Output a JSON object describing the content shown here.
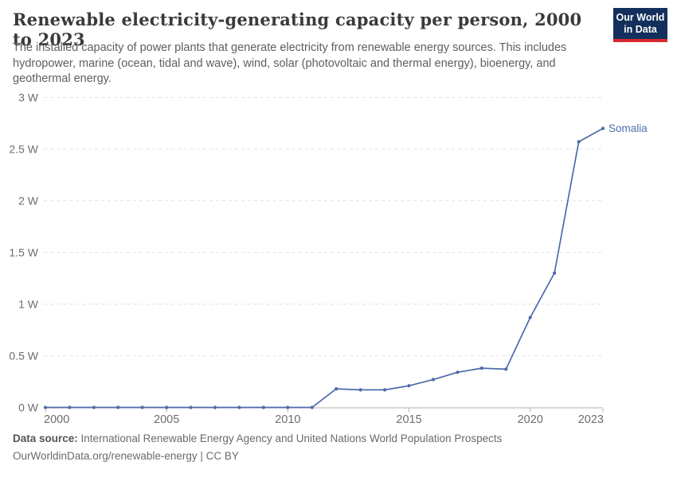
{
  "header": {
    "title": "Renewable electricity-generating capacity per person, 2000 to 2023",
    "subtitle_lines": [
      "The installed capacity of power plants that generate electricity from renewable energy sources. This includes",
      "hydropower, marine (ocean, tidal and wave), wind, solar (photovoltaic and thermal energy), bioenergy, and",
      "geothermal energy."
    ],
    "logo": {
      "line1": "Our World",
      "line2": "in Data",
      "bg_color": "#13305c",
      "stripe_color": "#d7282f"
    }
  },
  "chart_data": {
    "type": "line",
    "title": "Renewable electricity-generating capacity per person, 2000 to 2023",
    "unit": "W",
    "ylabel": "",
    "xlabel": "",
    "ylim": [
      0,
      3
    ],
    "grid": "horizontal-dashed",
    "legend_position": "end-of-line-label",
    "x": [
      2000,
      2001,
      2002,
      2003,
      2004,
      2005,
      2006,
      2007,
      2008,
      2009,
      2010,
      2011,
      2012,
      2013,
      2014,
      2015,
      2016,
      2017,
      2018,
      2019,
      2020,
      2021,
      2022,
      2023
    ],
    "series": [
      {
        "name": "Somalia",
        "color": "#4c6ba9",
        "values": [
          0,
          0,
          0,
          0,
          0,
          0,
          0,
          0,
          0,
          0,
          0,
          0,
          0.18,
          0.17,
          0.17,
          0.21,
          0.27,
          0.34,
          0.38,
          0.37,
          0.87,
          1.3,
          2.57,
          2.7
        ]
      }
    ],
    "yticks": [
      {
        "v": 0,
        "label": "0 W"
      },
      {
        "v": 0.5,
        "label": "0.5 W"
      },
      {
        "v": 1,
        "label": "1 W"
      },
      {
        "v": 1.5,
        "label": "1.5 W"
      },
      {
        "v": 2,
        "label": "2 W"
      },
      {
        "v": 2.5,
        "label": "2.5 W"
      },
      {
        "v": 3,
        "label": "3 W"
      }
    ],
    "xticks": [
      {
        "year": 2000,
        "label": "2000"
      },
      {
        "year": 2005,
        "label": "2005"
      },
      {
        "year": 2010,
        "label": "2010"
      },
      {
        "year": 2015,
        "label": "2015"
      },
      {
        "year": 2020,
        "label": "2020"
      },
      {
        "year": 2023,
        "label": "2023"
      }
    ],
    "end_label": "Somalia",
    "colors": {
      "line": "#4c6ba9",
      "entity_label": "#4e6fad",
      "gridline": "#e3e3e3",
      "axis": "#b0b0b0",
      "tick_label": "#6e6e6e"
    }
  },
  "footer": {
    "source_label": "Data source:",
    "source_text": "International Renewable Energy Agency and United Nations World Population Prospects",
    "link_line": "OurWorldinData.org/renewable-energy | CC BY"
  }
}
